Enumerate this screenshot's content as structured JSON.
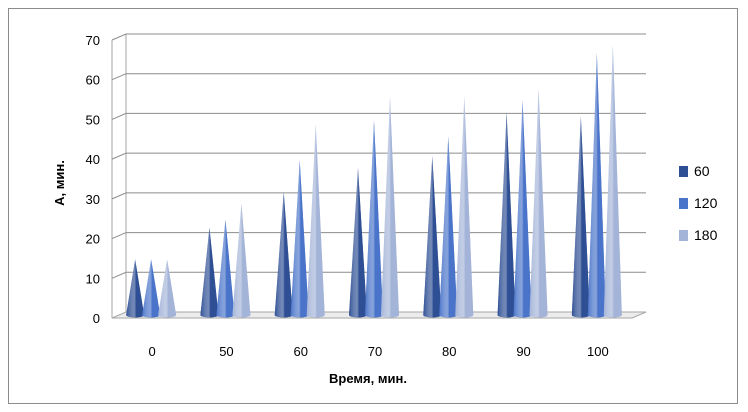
{
  "chart_data": {
    "type": "bar",
    "style": "3d-cone",
    "categories": [
      "0",
      "50",
      "60",
      "70",
      "80",
      "90",
      "100"
    ],
    "series": [
      {
        "name": "60",
        "color": "#2e4f94",
        "values": [
          14,
          22,
          31,
          37,
          40,
          51,
          50
        ]
      },
      {
        "name": "120",
        "color": "#4a74c9",
        "values": [
          14,
          24,
          39,
          49,
          45,
          54,
          66
        ]
      },
      {
        "name": "180",
        "color": "#a4b4d8",
        "values": [
          14,
          28,
          48,
          55,
          55,
          57,
          68
        ]
      }
    ],
    "title": "",
    "xlabel": "Время, мин.",
    "ylabel": "А, мин.",
    "ylim": [
      0,
      70
    ],
    "yticks": [
      0,
      10,
      20,
      30,
      40,
      50,
      60,
      70
    ],
    "grid": true,
    "legend": "right"
  }
}
